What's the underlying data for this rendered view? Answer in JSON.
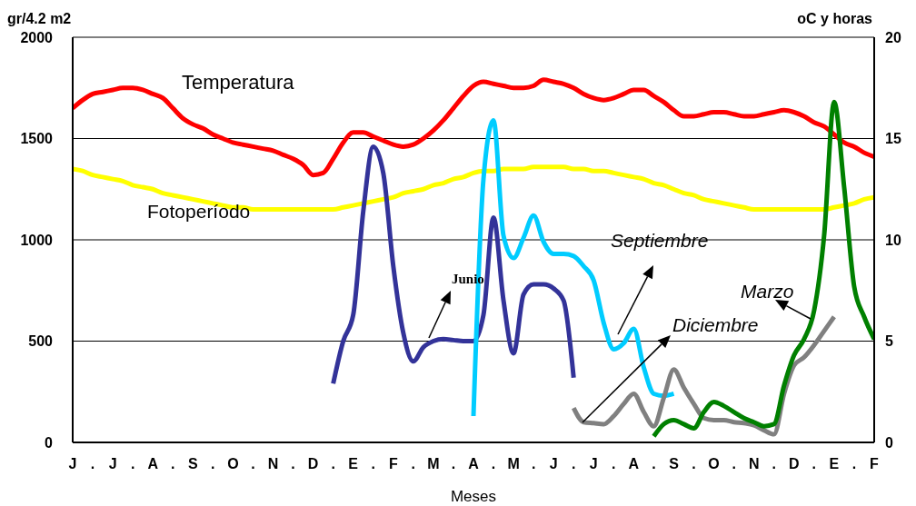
{
  "chart_data": {
    "type": "line",
    "xlabel": "Meses",
    "ylabel": "gr/4.2 m2",
    "y2label": "oC y horas",
    "categories": [
      "J",
      null,
      ".",
      null,
      "J",
      null,
      ".",
      null,
      "A",
      null,
      ".",
      null,
      "S",
      null,
      ".",
      null,
      "O",
      null,
      ".",
      null,
      "N",
      null,
      ".",
      null,
      "D",
      null,
      ".",
      null,
      "E",
      null,
      ".",
      null,
      "F",
      null,
      ".",
      null,
      "M",
      null,
      ".",
      null,
      "A",
      null,
      ".",
      null,
      "M",
      null,
      ".",
      null,
      "J",
      null,
      ".",
      null,
      "J",
      null,
      ".",
      null,
      "A",
      null,
      ".",
      null,
      "S",
      null,
      ".",
      null,
      "O",
      null,
      ".",
      null,
      "N",
      null,
      ".",
      null,
      "D",
      null,
      ".",
      null,
      "E",
      null,
      ".",
      null,
      "F"
    ],
    "ylim": [
      0,
      2000
    ],
    "yticks": [
      0,
      500,
      1000,
      1500,
      2000
    ],
    "y2lim": [
      0,
      20
    ],
    "y2ticks": [
      0,
      5,
      10,
      15,
      20
    ],
    "grid": "y",
    "series": [
      {
        "name": "Temperatura",
        "color": "#ff0000",
        "axis": "y2",
        "values": [
          16.5,
          16.9,
          17.2,
          17.3,
          17.4,
          17.5,
          17.5,
          17.4,
          17.2,
          17.0,
          16.5,
          16.0,
          15.7,
          15.5,
          15.2,
          15.0,
          14.8,
          14.7,
          14.6,
          14.5,
          14.4,
          14.2,
          14.0,
          13.7,
          13.2,
          13.3,
          14.0,
          14.8,
          15.3,
          15.3,
          15.1,
          14.9,
          14.7,
          14.6,
          14.7,
          15.0,
          15.4,
          15.9,
          16.5,
          17.1,
          17.6,
          17.8,
          17.7,
          17.6,
          17.5,
          17.5,
          17.6,
          17.9,
          17.8,
          17.7,
          17.5,
          17.2,
          17.0,
          16.9,
          17.0,
          17.2,
          17.4,
          17.4,
          17.1,
          16.8,
          16.4,
          16.1,
          16.1,
          16.2,
          16.3,
          16.3,
          16.2,
          16.1,
          16.1,
          16.2,
          16.3,
          16.4,
          16.3,
          16.1,
          15.8,
          15.6,
          15.2,
          14.8,
          14.6,
          14.3,
          14.1
        ]
      },
      {
        "name": "Fotoperíodo",
        "color": "#ffff00",
        "axis": "y2",
        "values": [
          13.5,
          13.4,
          13.2,
          13.1,
          13.0,
          12.9,
          12.7,
          12.6,
          12.5,
          12.3,
          12.2,
          12.1,
          12.0,
          11.9,
          11.8,
          11.7,
          11.6,
          11.6,
          11.5,
          11.5,
          11.5,
          11.5,
          11.5,
          11.5,
          11.5,
          11.5,
          11.5,
          11.6,
          11.7,
          11.8,
          11.9,
          12.0,
          12.1,
          12.3,
          12.4,
          12.5,
          12.7,
          12.8,
          13.0,
          13.1,
          13.3,
          13.4,
          13.4,
          13.5,
          13.5,
          13.5,
          13.6,
          13.6,
          13.6,
          13.6,
          13.5,
          13.5,
          13.4,
          13.4,
          13.3,
          13.2,
          13.1,
          13.0,
          12.8,
          12.7,
          12.5,
          12.3,
          12.2,
          12.0,
          11.9,
          11.8,
          11.7,
          11.6,
          11.5,
          11.5,
          11.5,
          11.5,
          11.5,
          11.5,
          11.5,
          11.5,
          11.6,
          11.7,
          11.8,
          12.0,
          12.1
        ]
      },
      {
        "name": "Junio",
        "color": "#333399",
        "values": [
          null,
          null,
          null,
          null,
          null,
          null,
          null,
          null,
          null,
          null,
          null,
          null,
          null,
          null,
          null,
          null,
          null,
          null,
          null,
          null,
          null,
          null,
          null,
          null,
          null,
          null,
          290,
          500,
          630,
          1140,
          1460,
          1330,
          870,
          540,
          400,
          470,
          500,
          510,
          505,
          500,
          500,
          630,
          1110,
          700,
          440,
          730,
          780,
          780,
          760,
          700,
          320,
          null,
          null,
          null,
          null,
          null,
          null,
          null,
          null,
          null,
          null,
          null,
          null,
          null,
          null,
          null,
          null,
          null,
          null,
          null,
          null,
          null,
          null,
          null,
          null,
          null,
          null,
          null,
          null,
          null,
          null
        ]
      },
      {
        "name": "Septiembre",
        "color": "#00ccff",
        "values": [
          null,
          null,
          null,
          null,
          null,
          null,
          null,
          null,
          null,
          null,
          null,
          null,
          null,
          null,
          null,
          null,
          null,
          null,
          null,
          null,
          null,
          null,
          null,
          null,
          null,
          null,
          null,
          null,
          null,
          null,
          null,
          null,
          null,
          null,
          null,
          null,
          null,
          null,
          null,
          null,
          130,
          1300,
          1590,
          1020,
          910,
          1010,
          1120,
          990,
          930,
          930,
          920,
          870,
          800,
          590,
          460,
          490,
          560,
          370,
          240,
          230,
          240,
          null,
          null,
          null,
          null,
          null,
          null,
          null,
          null,
          null,
          null,
          null,
          null,
          null,
          null,
          null,
          null,
          null,
          null,
          null,
          null
        ]
      },
      {
        "name": "Diciembre",
        "color": "#808080",
        "values": [
          null,
          null,
          null,
          null,
          null,
          null,
          null,
          null,
          null,
          null,
          null,
          null,
          null,
          null,
          null,
          null,
          null,
          null,
          null,
          null,
          null,
          null,
          null,
          null,
          null,
          null,
          null,
          null,
          null,
          null,
          null,
          null,
          null,
          null,
          null,
          null,
          null,
          null,
          null,
          null,
          null,
          null,
          null,
          null,
          null,
          null,
          null,
          null,
          null,
          null,
          170,
          100,
          95,
          90,
          130,
          190,
          240,
          150,
          80,
          220,
          360,
          270,
          190,
          120,
          110,
          110,
          100,
          95,
          85,
          60,
          40,
          240,
          380,
          420,
          480,
          550,
          620,
          null,
          null,
          null,
          null
        ]
      },
      {
        "name": "Marzo",
        "color": "#008000",
        "values": [
          null,
          null,
          null,
          null,
          null,
          null,
          null,
          null,
          null,
          null,
          null,
          null,
          null,
          null,
          null,
          null,
          null,
          null,
          null,
          null,
          null,
          null,
          null,
          null,
          null,
          null,
          null,
          null,
          null,
          null,
          null,
          null,
          null,
          null,
          null,
          null,
          null,
          null,
          null,
          null,
          null,
          null,
          null,
          null,
          null,
          null,
          null,
          null,
          null,
          null,
          null,
          null,
          null,
          null,
          null,
          null,
          null,
          null,
          30,
          90,
          110,
          90,
          70,
          150,
          200,
          180,
          150,
          120,
          100,
          80,
          90,
          280,
          430,
          510,
          650,
          1020,
          1680,
          1260,
          770,
          620,
          510
        ]
      }
    ]
  }
}
